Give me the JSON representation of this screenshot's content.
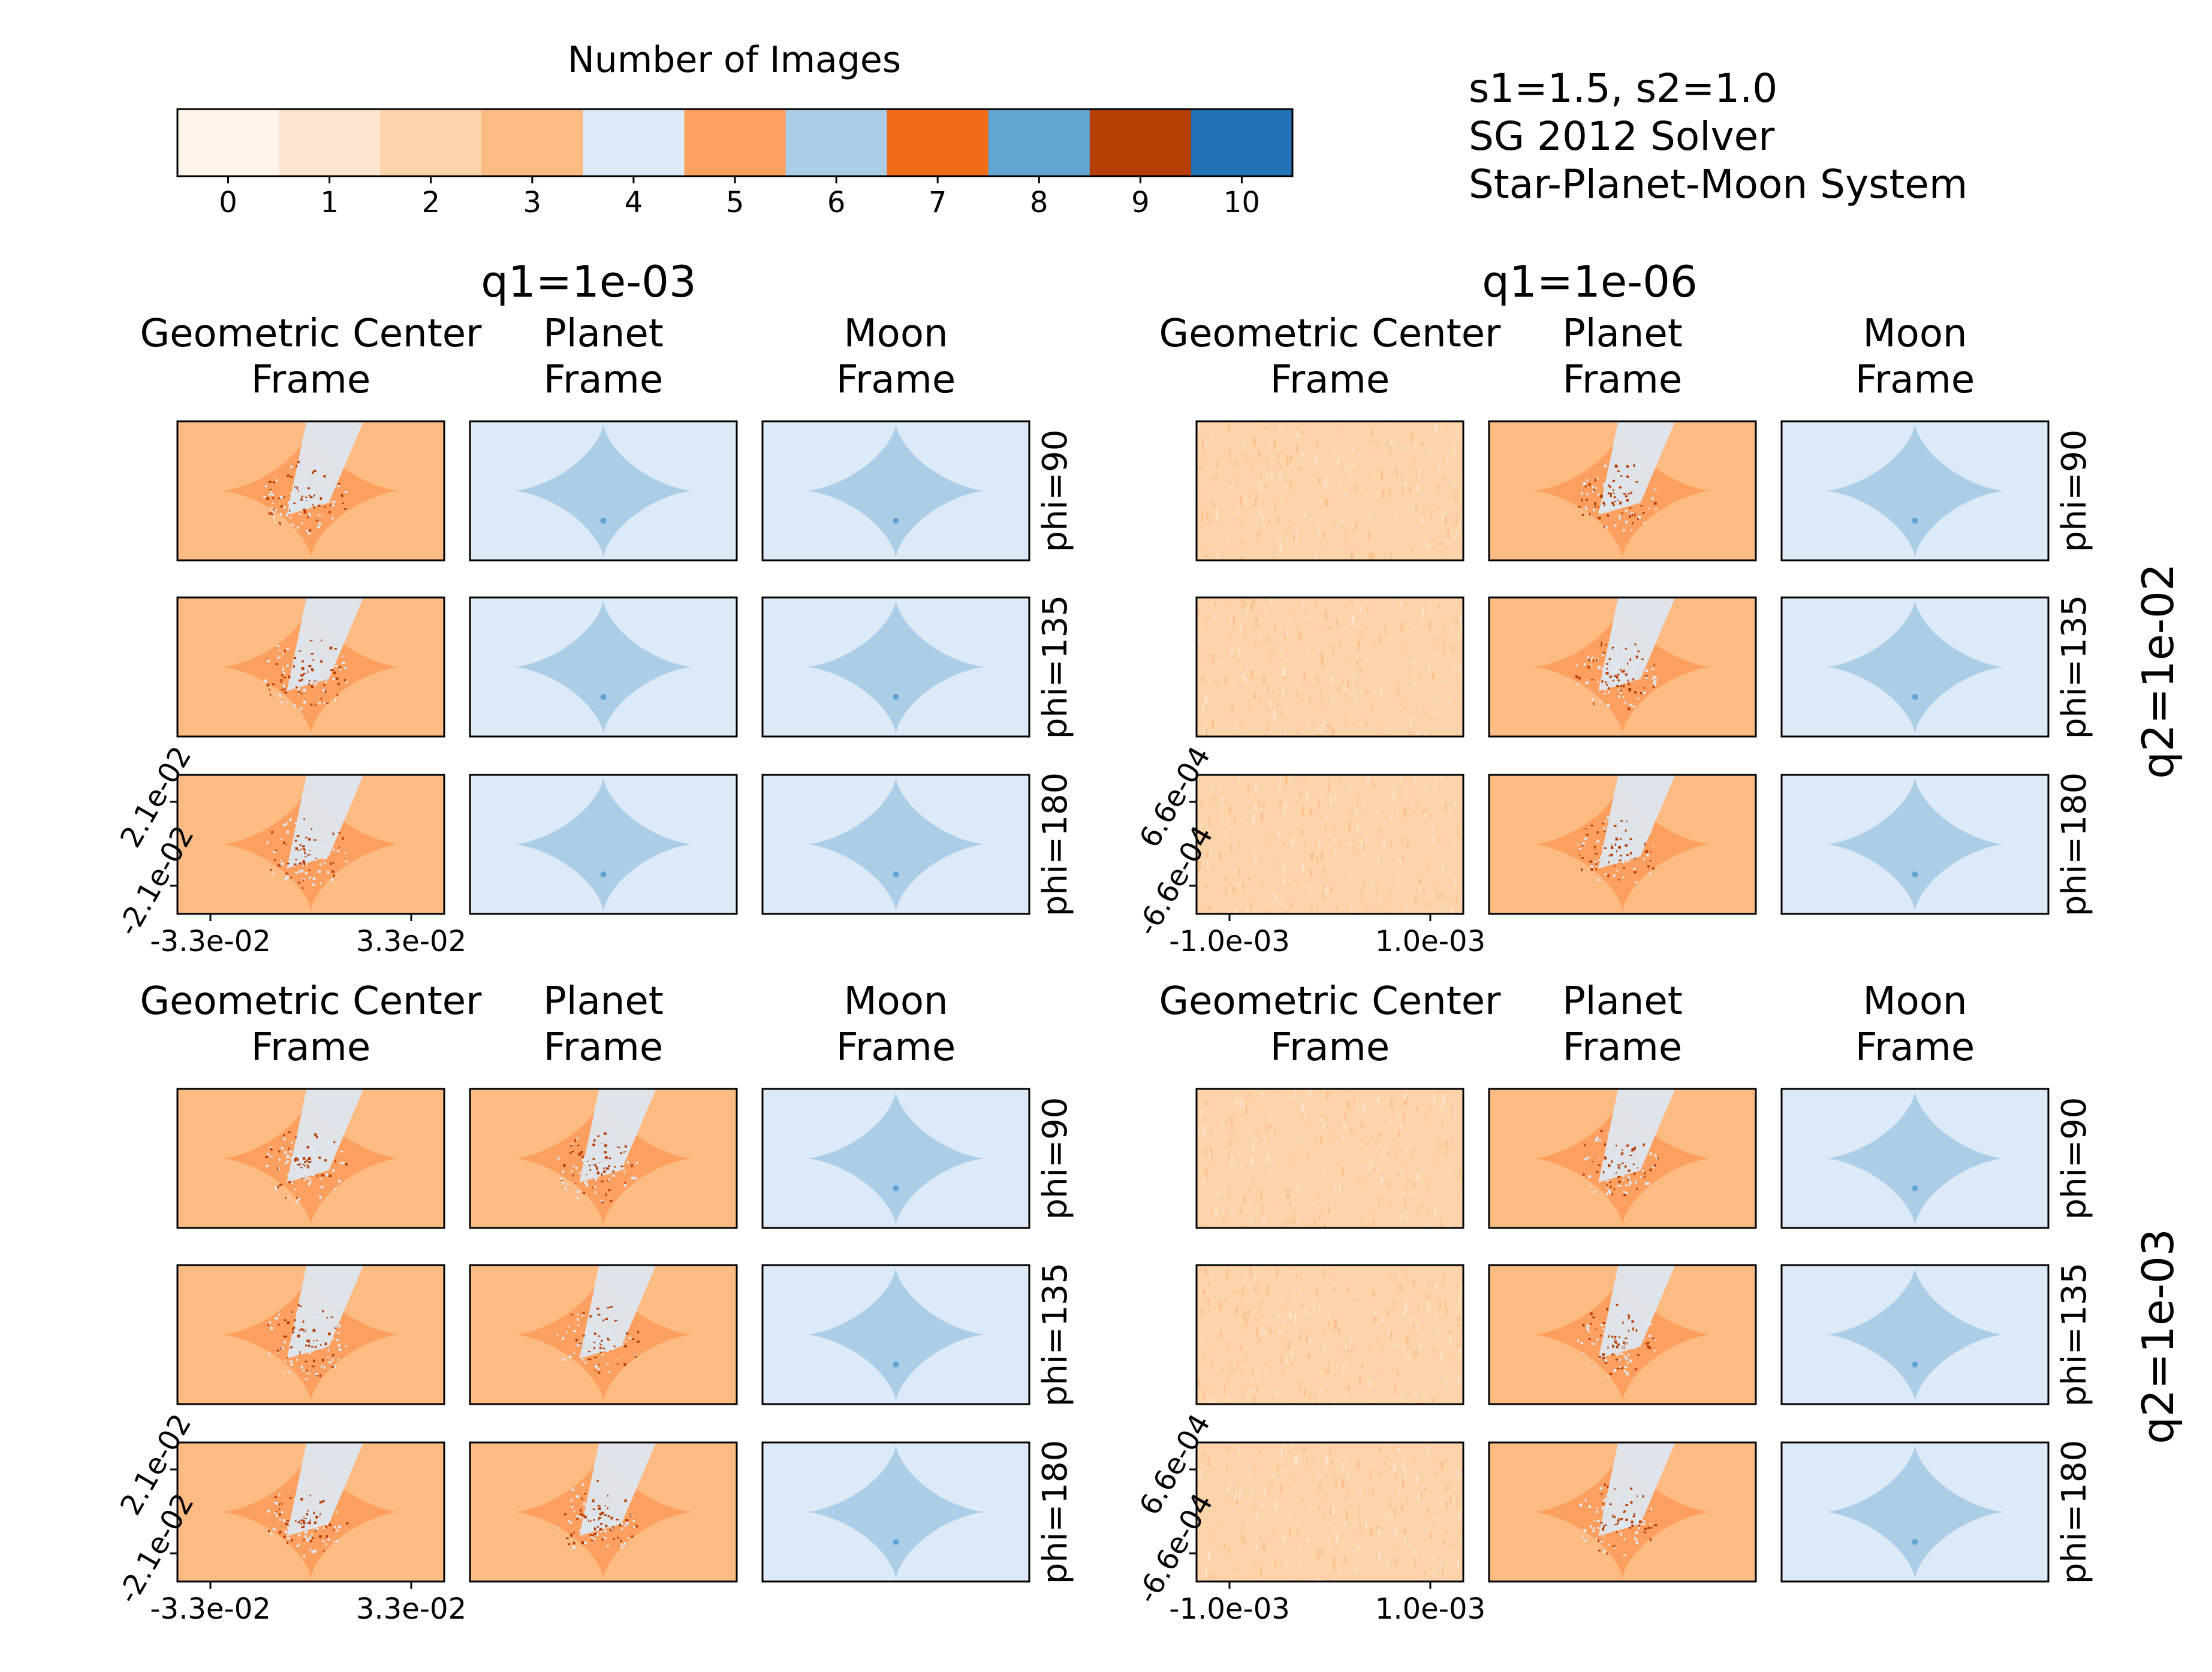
{
  "figure": {
    "info_lines": [
      "s1=1.5, s2=1.0",
      "SG 2012 Solver",
      "Star-Planet-Moon System"
    ]
  },
  "colorbar": {
    "label": "Number of Images",
    "ticks": [
      "0",
      "1",
      "2",
      "3",
      "4",
      "5",
      "6",
      "7",
      "8",
      "9",
      "10"
    ],
    "colors": [
      "#fef4e9",
      "#fde5cf",
      "#fdd3a9",
      "#fdbb84",
      "#dce9f6",
      "#fda05f",
      "#abcde6",
      "#f06c18",
      "#60a5d4",
      "#b63e04",
      "#2271b5"
    ]
  },
  "chart_data": {
    "type": "heatmap",
    "description_of_values": "number of images",
    "column_groups": [
      "q1=1e-03",
      "q1=1e-06"
    ],
    "frames": [
      "Geometric Center\nFrame",
      "Planet\nFrame",
      "Moon\nFrame"
    ],
    "row_groups": [
      "q2=1e-02",
      "q2=1e-03"
    ],
    "phi_labels": [
      "phi=90",
      "phi=135",
      "phi=180"
    ],
    "axes": {
      "q1=1e-03": {
        "xticks": [
          "-3.3e-02",
          "3.3e-02"
        ],
        "yticks": [
          "2.1e-02",
          "-2.1e-02"
        ]
      },
      "q1=1e-06": {
        "xticks": [
          "-1.0e-03",
          "1.0e-03"
        ],
        "yticks": [
          "6.6e-04",
          "-6.6e-04"
        ]
      }
    },
    "panels": [
      {
        "q1": "1e-03",
        "q2": "1e-02",
        "frame": "Geometric Center",
        "phi": 90,
        "background_images": 3,
        "caustic_images": 5,
        "pattern": "perturbed"
      },
      {
        "q1": "1e-03",
        "q2": "1e-02",
        "frame": "Planet",
        "phi": 90,
        "background_images": 4,
        "caustic_images": 6,
        "pattern": "clean"
      },
      {
        "q1": "1e-03",
        "q2": "1e-02",
        "frame": "Moon",
        "phi": 90,
        "background_images": 4,
        "caustic_images": 6,
        "pattern": "clean"
      },
      {
        "q1": "1e-03",
        "q2": "1e-02",
        "frame": "Geometric Center",
        "phi": 135,
        "background_images": 3,
        "caustic_images": 5,
        "pattern": "perturbed"
      },
      {
        "q1": "1e-03",
        "q2": "1e-02",
        "frame": "Planet",
        "phi": 135,
        "background_images": 4,
        "caustic_images": 6,
        "pattern": "clean"
      },
      {
        "q1": "1e-03",
        "q2": "1e-02",
        "frame": "Moon",
        "phi": 135,
        "background_images": 4,
        "caustic_images": 6,
        "pattern": "clean"
      },
      {
        "q1": "1e-03",
        "q2": "1e-02",
        "frame": "Geometric Center",
        "phi": 180,
        "background_images": 3,
        "caustic_images": 5,
        "pattern": "perturbed"
      },
      {
        "q1": "1e-03",
        "q2": "1e-02",
        "frame": "Planet",
        "phi": 180,
        "background_images": 4,
        "caustic_images": 6,
        "pattern": "clean"
      },
      {
        "q1": "1e-03",
        "q2": "1e-02",
        "frame": "Moon",
        "phi": 180,
        "background_images": 4,
        "caustic_images": 6,
        "pattern": "clean"
      },
      {
        "q1": "1e-06",
        "q2": "1e-02",
        "frame": "Geometric Center",
        "phi": 90,
        "background_images": 2,
        "caustic_images": null,
        "pattern": "noise"
      },
      {
        "q1": "1e-06",
        "q2": "1e-02",
        "frame": "Planet",
        "phi": 90,
        "background_images": 3,
        "caustic_images": 5,
        "pattern": "perturbed"
      },
      {
        "q1": "1e-06",
        "q2": "1e-02",
        "frame": "Moon",
        "phi": 90,
        "background_images": 4,
        "caustic_images": 6,
        "pattern": "clean"
      },
      {
        "q1": "1e-06",
        "q2": "1e-02",
        "frame": "Geometric Center",
        "phi": 135,
        "background_images": 2,
        "caustic_images": null,
        "pattern": "noise"
      },
      {
        "q1": "1e-06",
        "q2": "1e-02",
        "frame": "Planet",
        "phi": 135,
        "background_images": 3,
        "caustic_images": 5,
        "pattern": "perturbed"
      },
      {
        "q1": "1e-06",
        "q2": "1e-02",
        "frame": "Moon",
        "phi": 135,
        "background_images": 4,
        "caustic_images": 6,
        "pattern": "clean"
      },
      {
        "q1": "1e-06",
        "q2": "1e-02",
        "frame": "Geometric Center",
        "phi": 180,
        "background_images": 2,
        "caustic_images": null,
        "pattern": "noise"
      },
      {
        "q1": "1e-06",
        "q2": "1e-02",
        "frame": "Planet",
        "phi": 180,
        "background_images": 3,
        "caustic_images": 5,
        "pattern": "perturbed"
      },
      {
        "q1": "1e-06",
        "q2": "1e-02",
        "frame": "Moon",
        "phi": 180,
        "background_images": 4,
        "caustic_images": 6,
        "pattern": "clean"
      },
      {
        "q1": "1e-03",
        "q2": "1e-03",
        "frame": "Geometric Center",
        "phi": 90,
        "background_images": 3,
        "caustic_images": 5,
        "pattern": "perturbed"
      },
      {
        "q1": "1e-03",
        "q2": "1e-03",
        "frame": "Planet",
        "phi": 90,
        "background_images": 3,
        "caustic_images": 5,
        "pattern": "perturbed"
      },
      {
        "q1": "1e-03",
        "q2": "1e-03",
        "frame": "Moon",
        "phi": 90,
        "background_images": 4,
        "caustic_images": 6,
        "pattern": "clean"
      },
      {
        "q1": "1e-03",
        "q2": "1e-03",
        "frame": "Geometric Center",
        "phi": 135,
        "background_images": 3,
        "caustic_images": 5,
        "pattern": "perturbed"
      },
      {
        "q1": "1e-03",
        "q2": "1e-03",
        "frame": "Planet",
        "phi": 135,
        "background_images": 3,
        "caustic_images": 5,
        "pattern": "perturbed"
      },
      {
        "q1": "1e-03",
        "q2": "1e-03",
        "frame": "Moon",
        "phi": 135,
        "background_images": 4,
        "caustic_images": 6,
        "pattern": "clean"
      },
      {
        "q1": "1e-03",
        "q2": "1e-03",
        "frame": "Geometric Center",
        "phi": 180,
        "background_images": 3,
        "caustic_images": 5,
        "pattern": "perturbed"
      },
      {
        "q1": "1e-03",
        "q2": "1e-03",
        "frame": "Planet",
        "phi": 180,
        "background_images": 3,
        "caustic_images": 5,
        "pattern": "perturbed"
      },
      {
        "q1": "1e-03",
        "q2": "1e-03",
        "frame": "Moon",
        "phi": 180,
        "background_images": 4,
        "caustic_images": 6,
        "pattern": "clean"
      },
      {
        "q1": "1e-06",
        "q2": "1e-03",
        "frame": "Geometric Center",
        "phi": 90,
        "background_images": 2,
        "caustic_images": null,
        "pattern": "noise"
      },
      {
        "q1": "1e-06",
        "q2": "1e-03",
        "frame": "Planet",
        "phi": 90,
        "background_images": 3,
        "caustic_images": 5,
        "pattern": "perturbed"
      },
      {
        "q1": "1e-06",
        "q2": "1e-03",
        "frame": "Moon",
        "phi": 90,
        "background_images": 4,
        "caustic_images": 6,
        "pattern": "clean"
      },
      {
        "q1": "1e-06",
        "q2": "1e-03",
        "frame": "Geometric Center",
        "phi": 135,
        "background_images": 2,
        "caustic_images": null,
        "pattern": "noise"
      },
      {
        "q1": "1e-06",
        "q2": "1e-03",
        "frame": "Planet",
        "phi": 135,
        "background_images": 3,
        "caustic_images": 5,
        "pattern": "perturbed"
      },
      {
        "q1": "1e-06",
        "q2": "1e-03",
        "frame": "Moon",
        "phi": 135,
        "background_images": 4,
        "caustic_images": 6,
        "pattern": "clean"
      },
      {
        "q1": "1e-06",
        "q2": "1e-03",
        "frame": "Geometric Center",
        "phi": 180,
        "background_images": 2,
        "caustic_images": null,
        "pattern": "noise"
      },
      {
        "q1": "1e-06",
        "q2": "1e-03",
        "frame": "Planet",
        "phi": 180,
        "background_images": 3,
        "caustic_images": 5,
        "pattern": "perturbed"
      },
      {
        "q1": "1e-06",
        "q2": "1e-03",
        "frame": "Moon",
        "phi": 180,
        "background_images": 4,
        "caustic_images": 6,
        "pattern": "clean"
      }
    ]
  }
}
